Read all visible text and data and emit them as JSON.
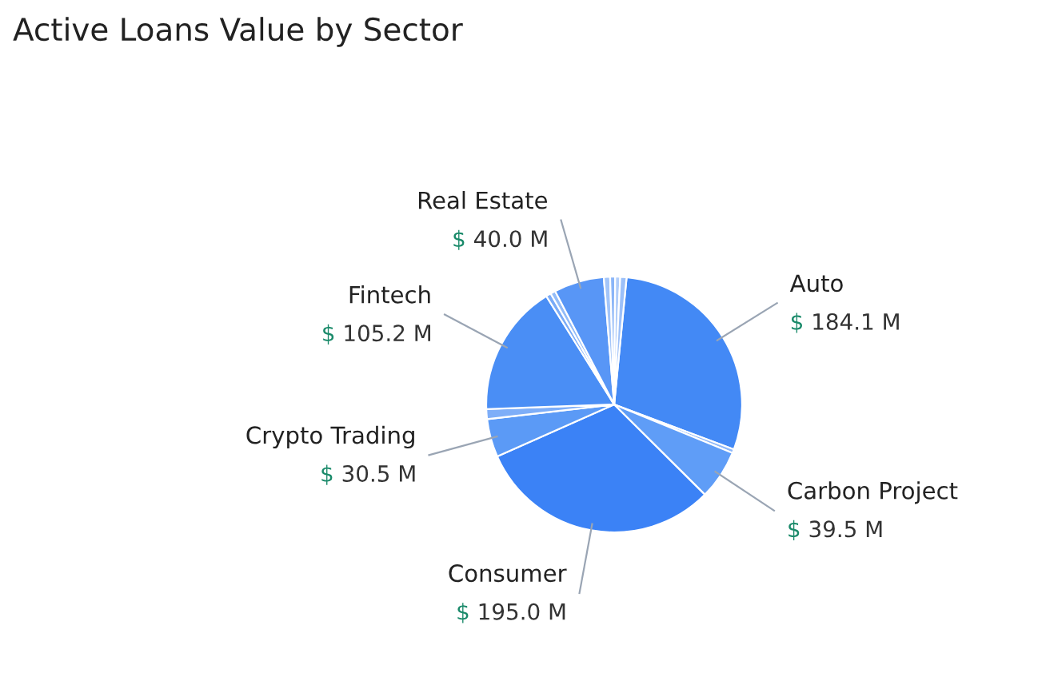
{
  "chart_data": {
    "type": "pie",
    "title": "Active Loans Value by Sector",
    "categories": [
      "Auto",
      null,
      "Carbon Project",
      "Consumer",
      "Crypto Trading",
      null,
      "Fintech",
      null,
      null,
      "Real Estate",
      null,
      null,
      null,
      null
    ],
    "values": [
      184.1,
      3,
      39.5,
      195.0,
      30.5,
      8,
      105.2,
      4,
      4,
      40.0,
      5,
      4,
      4,
      5
    ],
    "value_labels": [
      "$ 184.1 M",
      null,
      "$ 39.5 M",
      "$ 195.0 M",
      "$ 30.5 M",
      null,
      "$ 105.2 M",
      null,
      null,
      "$ 40.0 M",
      null,
      null,
      null,
      null
    ],
    "colors": [
      "#4389f5",
      "#8fb8f8",
      "#5f9df7",
      "#3b82f6",
      "#5b9af6",
      "#7eaef8",
      "#4a8ef5",
      "#7aabf7",
      "#93bcf8",
      "#5896f6",
      "#a3c5f9",
      "#8ab5f8",
      "#b0cdfa",
      "#9cc0f9"
    ],
    "legend": false
  }
}
